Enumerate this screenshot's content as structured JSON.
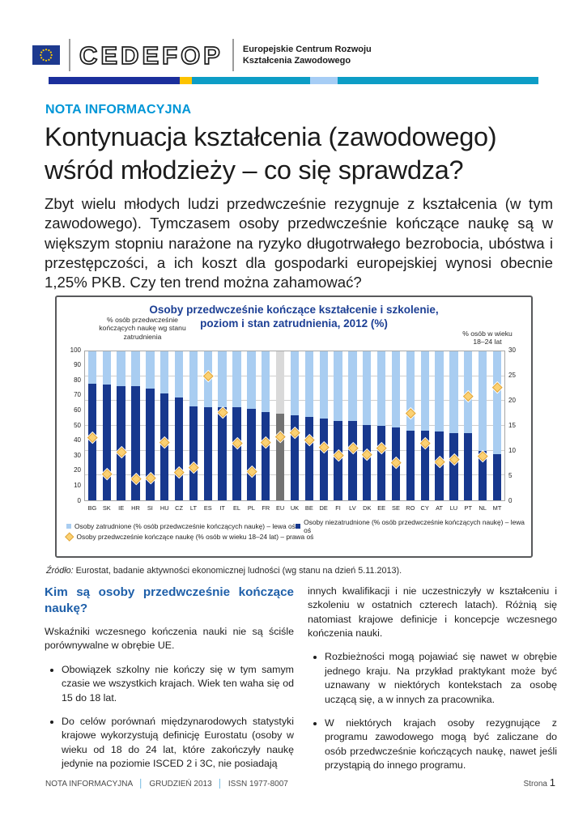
{
  "header": {
    "brand": "CEDEFOP",
    "tagline_line1": "Europejskie Centrum Rozwoju",
    "tagline_line2": "Kształcenia Zawodowego",
    "stripe_colors": [
      "#1b2f9c",
      "#fdc300",
      "#0d9dc6",
      "#a6cdf5",
      "#0d9dc6"
    ]
  },
  "kicker": "NOTA INFORMACYJNA",
  "title": "Kontynuacja kształcenia (zawodowego) wśród młodzieży – co się sprawdza?",
  "lead": "Zbyt wielu młodych ludzi przedwcześnie rezygnuje z kształcenia (w tym zawodowego). Tymczasem osoby przedwcześnie kończące naukę są w większym stopniu narażone na ryzyko długotrwałego bezrobocia, ubóstwa i przestępczości, a ich koszt dla gospodarki europejskiej wynosi obecnie 1,25% PKB. Czy ten trend można zahamować?",
  "chart_data": {
    "type": "bar",
    "subtype": "stacked-100-with-right-axis-markers",
    "title": "Osoby przedwcześnie kończące kształcenie i szkolenie, poziom i stan zatrudnienia, 2012 (%)",
    "title_lines": [
      "Osoby przedwcześnie kończące kształcenie i szkolenie,",
      "poziom i stan zatrudnienia, 2012 (%)"
    ],
    "left_axis_label_lines": [
      "% osób przedwcześnie",
      "kończących naukę wg stanu",
      "zatrudnienia"
    ],
    "right_axis_label_lines": [
      "% osób w wieku",
      "18–24 lat"
    ],
    "left_axis": {
      "min": 0,
      "max": 100,
      "step": 10
    },
    "right_axis": {
      "min": 0,
      "max": 30,
      "step": 5
    },
    "grid": "horizontal, every 5 units of right axis",
    "legend_position": "bottom-inside",
    "series": [
      {
        "name": "Osoby zatrudnione (% osób przedwcześnie kończących naukę) – lewa oś",
        "color": "#a9cdf1",
        "axis": "left"
      },
      {
        "name": "Osoby niezatrudnione (% osób przedwcześnie kończących naukę) – lewa oś",
        "color": "#17388e",
        "axis": "left"
      },
      {
        "name": "Osoby przedwcześnie kończące naukę (% osób w wieku 18–24 lat) – prawa oś",
        "color": "#f7c04a",
        "axis": "right",
        "marker": "diamond"
      }
    ],
    "colors": {
      "employed": "#a9cdf1",
      "not_employed": "#17388e",
      "eu_employed": "#d9d9d9",
      "eu_not_employed": "#737373",
      "marker_fill": "#fbd173",
      "marker_border": "#e0a53a"
    },
    "countries": [
      {
        "code": "BG",
        "employed": 21.5,
        "not_employed": 78.5,
        "esl_rate": 12.5
      },
      {
        "code": "SK",
        "employed": 22.5,
        "not_employed": 77.5,
        "esl_rate": 5.3
      },
      {
        "code": "IE",
        "employed": 23.5,
        "not_employed": 76.5,
        "esl_rate": 9.7
      },
      {
        "code": "HR",
        "employed": 23.5,
        "not_employed": 76.5,
        "esl_rate": 4.2
      },
      {
        "code": "SI",
        "employed": 25.0,
        "not_employed": 75.0,
        "esl_rate": 4.4
      },
      {
        "code": "HU",
        "employed": 28.0,
        "not_employed": 72.0,
        "esl_rate": 11.5
      },
      {
        "code": "CZ",
        "employed": 31.0,
        "not_employed": 69.0,
        "esl_rate": 5.5
      },
      {
        "code": "LT",
        "employed": 37.0,
        "not_employed": 63.0,
        "esl_rate": 6.5
      },
      {
        "code": "ES",
        "employed": 37.5,
        "not_employed": 62.5,
        "esl_rate": 24.9
      },
      {
        "code": "IT",
        "employed": 37.5,
        "not_employed": 62.5,
        "esl_rate": 17.6
      },
      {
        "code": "EL",
        "employed": 37.5,
        "not_employed": 62.5,
        "esl_rate": 11.4
      },
      {
        "code": "PL",
        "employed": 38.5,
        "not_employed": 61.5,
        "esl_rate": 5.7
      },
      {
        "code": "FR",
        "employed": 40.5,
        "not_employed": 59.5,
        "esl_rate": 11.6
      },
      {
        "code": "EU",
        "employed": 42.0,
        "not_employed": 58.0,
        "esl_rate": 12.7,
        "highlight": true
      },
      {
        "code": "UK",
        "employed": 43.0,
        "not_employed": 57.0,
        "esl_rate": 13.5
      },
      {
        "code": "BE",
        "employed": 44.0,
        "not_employed": 56.0,
        "esl_rate": 12.0
      },
      {
        "code": "DE",
        "employed": 45.0,
        "not_employed": 55.0,
        "esl_rate": 10.6
      },
      {
        "code": "FI",
        "employed": 46.5,
        "not_employed": 53.5,
        "esl_rate": 8.9
      },
      {
        "code": "LV",
        "employed": 47.0,
        "not_employed": 53.0,
        "esl_rate": 10.5
      },
      {
        "code": "DK",
        "employed": 49.5,
        "not_employed": 50.5,
        "esl_rate": 9.1
      },
      {
        "code": "EE",
        "employed": 50.0,
        "not_employed": 50.0,
        "esl_rate": 10.5
      },
      {
        "code": "SE",
        "employed": 51.0,
        "not_employed": 49.0,
        "esl_rate": 7.5
      },
      {
        "code": "RO",
        "employed": 53.0,
        "not_employed": 47.0,
        "esl_rate": 17.4
      },
      {
        "code": "CY",
        "employed": 53.5,
        "not_employed": 46.5,
        "esl_rate": 11.4
      },
      {
        "code": "AT",
        "employed": 54.0,
        "not_employed": 46.0,
        "esl_rate": 7.6
      },
      {
        "code": "LU",
        "employed": 55.0,
        "not_employed": 45.0,
        "esl_rate": 8.1
      },
      {
        "code": "PT",
        "employed": 55.0,
        "not_employed": 45.0,
        "esl_rate": 20.8
      },
      {
        "code": "NL",
        "employed": 67.0,
        "not_employed": 33.0,
        "esl_rate": 8.8
      },
      {
        "code": "MT",
        "employed": 69.0,
        "not_employed": 31.0,
        "esl_rate": 22.6
      }
    ]
  },
  "source": {
    "label": "Źródło:",
    "text": " Eurostat, badanie aktywności ekonomicznej ludności (wg stanu na dzień 5.11.2013)."
  },
  "columns": {
    "left": {
      "heading": "Kim są osoby przedwcześnie kończące naukę?",
      "intro": "Wskaźniki wczesnego kończenia nauki nie są ściśle porównywalne w obrębie UE.",
      "bullets": [
        "Obowiązek szkolny nie kończy się w tym samym czasie we wszystkich krajach. Wiek ten waha się od 15 do 18 lat.",
        "Do celów porównań międzynarodowych statystyki krajowe wykorzystują definicję Eurostatu (osoby w wieku od 18 do 24 lat, które zakończyły naukę jedynie na poziomie ISCED 2 i 3C, nie posiadają"
      ]
    },
    "right": {
      "continuation": "innych kwalifikacji i nie uczestniczyły w kształceniu i szkoleniu w ostatnich czterech latach). Różnią się natomiast krajowe definicje i koncepcje wczesnego kończenia nauki.",
      "bullets": [
        "Rozbieżności mogą pojawiać się nawet w obrębie jednego kraju. Na przykład praktykant może być uznawany w niektórych kontekstach za osobę uczącą się, a w innych za pracownika.",
        "W niektórych krajach osoby rezygnujące z programu zawodowego mogą być zaliczane do osób przedwcześnie kończących naukę, nawet jeśli przystąpią do innego programu."
      ]
    }
  },
  "footer": {
    "items": [
      "NOTA INFORMACYJNA",
      "GRUDZIEŃ 2013",
      "ISSN 1977-8007"
    ],
    "separator": "│",
    "page_label": "Strona",
    "page_number": "1"
  }
}
